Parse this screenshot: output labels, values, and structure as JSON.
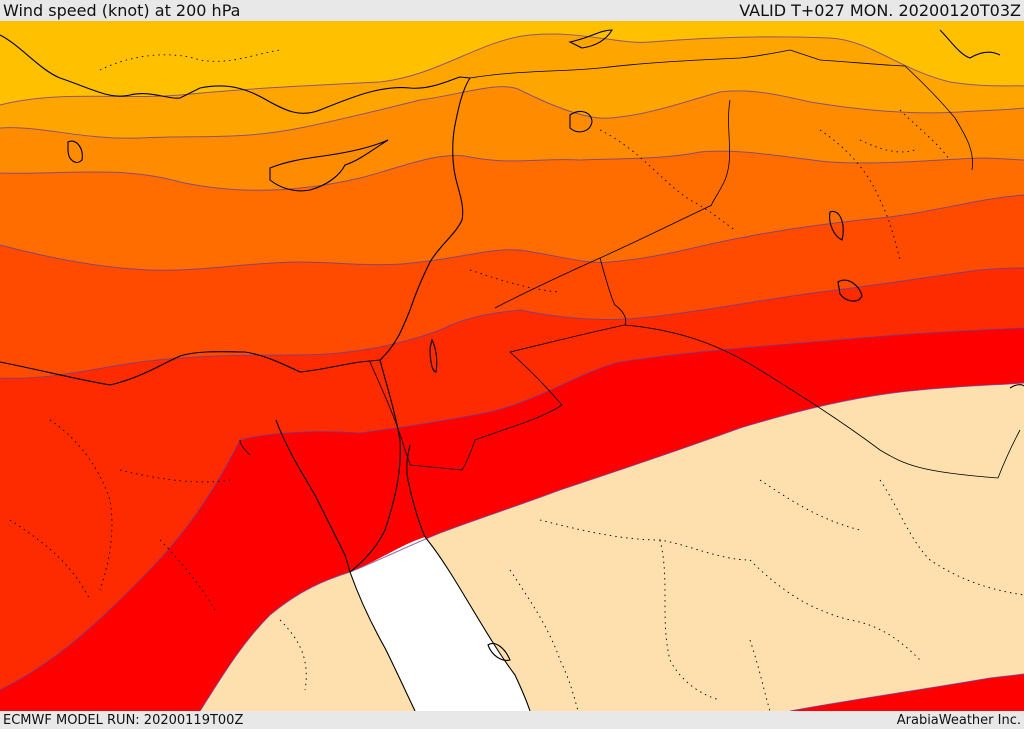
{
  "header": {
    "title": "Wind speed (knot) at 200 hPa",
    "valid": "VALID T+027 MON. 20200120T03Z"
  },
  "footer": {
    "model_run": "ECMWF MODEL RUN: 20200119T00Z",
    "credit": "ArabiaWeather Inc."
  },
  "map": {
    "variable": "wind speed",
    "level": "200 hPa",
    "unit": "knot",
    "colors": {
      "band_1": "#ffc000",
      "band_2": "#ffa500",
      "band_3": "#ff8c00",
      "band_4": "#ff6d00",
      "band_5": "#ff4b00",
      "band_6": "#ff2b00",
      "band_7": "#ff0000",
      "calm": "#fde0ad",
      "sea_masked": "#ffffff",
      "contour": "#6a3a9a",
      "coastline": "#000000"
    }
  }
}
